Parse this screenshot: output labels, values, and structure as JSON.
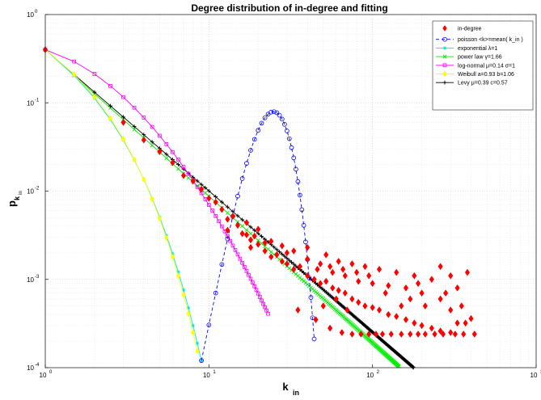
{
  "chart_data": {
    "type": "scatter",
    "title": "Degree distribution of in-degree and fitting",
    "xlabel": "k",
    "xlabel_sub": "in",
    "ylabel": "p",
    "ylabel_sub": "k",
    "ylabel_subsub": "in",
    "x_scale": "log",
    "y_scale": "log",
    "xlim": [
      1,
      1000
    ],
    "ylim": [
      0.0001,
      1
    ],
    "x_ticks": [
      {
        "base": "10",
        "exp": "0",
        "v": 1
      },
      {
        "base": "10",
        "exp": "1",
        "v": 10
      },
      {
        "base": "10",
        "exp": "2",
        "v": 100
      },
      {
        "base": "10",
        "exp": "3",
        "v": 1000
      }
    ],
    "y_ticks": [
      {
        "base": "10",
        "exp": "-4",
        "v": 0.0001
      },
      {
        "base": "10",
        "exp": "-3",
        "v": 0.001
      },
      {
        "base": "10",
        "exp": "-2",
        "v": 0.01
      },
      {
        "base": "10",
        "exp": "-1",
        "v": 0.1
      },
      {
        "base": "10",
        "exp": "0",
        "v": 1
      }
    ],
    "grid": true,
    "legend_position": "top-right",
    "series": [
      {
        "name": "in-degree",
        "color": "#ff0000",
        "marker": "diamond",
        "line": "none",
        "points": [
          [
            1,
            0.4
          ],
          [
            3,
            0.06
          ],
          [
            4,
            0.038
          ],
          [
            5,
            0.028
          ],
          [
            6,
            0.021
          ],
          [
            7,
            0.015
          ],
          [
            8,
            0.013
          ],
          [
            9,
            0.0105
          ],
          [
            10,
            0.0083
          ],
          [
            11,
            0.0075
          ],
          [
            12,
            0.0062
          ],
          [
            13,
            0.0048
          ],
          [
            14,
            0.0052
          ],
          [
            15,
            0.0041
          ],
          [
            16,
            0.0033
          ],
          [
            17,
            0.0032
          ],
          [
            18,
            0.0028
          ],
          [
            19,
            0.0031
          ],
          [
            20,
            0.0025
          ],
          [
            22,
            0.0021
          ],
          [
            24,
            0.0018
          ],
          [
            26,
            0.0019
          ],
          [
            28,
            0.0016
          ],
          [
            30,
            0.0015
          ],
          [
            33,
            0.0013
          ],
          [
            36,
            0.0014
          ],
          [
            40,
            0.0011
          ],
          [
            44,
            0.001
          ],
          [
            48,
            0.0009
          ],
          [
            52,
            0.00095
          ],
          [
            57,
            0.0008
          ],
          [
            62,
            0.00075
          ],
          [
            68,
            0.0007
          ],
          [
            75,
            0.0006
          ],
          [
            82,
            0.00055
          ],
          [
            90,
            0.0005
          ],
          [
            100,
            0.00048
          ],
          [
            110,
            0.00045
          ],
          [
            125,
            0.0004
          ],
          [
            140,
            0.00038
          ],
          [
            160,
            0.00035
          ],
          [
            180,
            0.00032
          ],
          [
            200,
            0.0003
          ],
          [
            230,
            0.00028
          ],
          [
            260,
            0.00026
          ],
          [
            300,
            0.00025
          ],
          [
            17,
            0.0044
          ],
          [
            20,
            0.0037
          ],
          [
            24,
            0.0027
          ],
          [
            28,
            0.0024
          ],
          [
            33,
            0.0021
          ],
          [
            40,
            0.0017
          ],
          [
            48,
            0.0015
          ],
          [
            57,
            0.0012
          ],
          [
            68,
            0.0011
          ],
          [
            82,
            0.00095
          ],
          [
            100,
            0.0009
          ],
          [
            125,
            0.00085
          ],
          [
            160,
            0.0008
          ],
          [
            200,
            0.0007
          ],
          [
            260,
            0.0006
          ],
          [
            22,
            0.0026
          ],
          [
            30,
            0.002
          ],
          [
            40,
            0.0023
          ],
          [
            52,
            0.0019
          ],
          [
            62,
            0.0016
          ],
          [
            75,
            0.0015
          ],
          [
            90,
            0.0014
          ],
          [
            110,
            0.0013
          ],
          [
            140,
            0.0012
          ],
          [
            180,
            0.0011
          ],
          [
            230,
            0.001
          ],
          [
            35,
            0.00045
          ],
          [
            45,
            0.00035
          ],
          [
            55,
            0.00028
          ],
          [
            65,
            0.00025
          ],
          [
            75,
            0.00024
          ],
          [
            85,
            0.00024
          ],
          [
            95,
            0.00024
          ],
          [
            105,
            0.00024
          ],
          [
            115,
            0.00024
          ],
          [
            130,
            0.00024
          ],
          [
            150,
            0.00024
          ],
          [
            170,
            0.00024
          ],
          [
            190,
            0.00024
          ],
          [
            210,
            0.00024
          ],
          [
            240,
            0.00024
          ],
          [
            270,
            0.00024
          ],
          [
            320,
            0.00024
          ],
          [
            360,
            0.00024
          ],
          [
            420,
            0.00024
          ],
          [
            330,
            0.00032
          ],
          [
            370,
            0.00032
          ],
          [
            400,
            0.00036
          ],
          [
            300,
            0.00045
          ],
          [
            350,
            0.0005
          ],
          [
            280,
            0.0007
          ],
          [
            330,
            0.0008
          ],
          [
            380,
            0.0012
          ],
          [
            260,
            0.0014
          ],
          [
            300,
            0.0011
          ],
          [
            13,
            0.0036
          ],
          [
            18,
            0.0023
          ],
          [
            150,
            0.0005
          ],
          [
            170,
            0.0006
          ],
          [
            190,
            0.0009
          ],
          [
            210,
            0.0005
          ],
          [
            120,
            0.0007
          ],
          [
            95,
            0.0011
          ],
          [
            80,
            0.0012
          ],
          [
            66,
            0.0013
          ],
          [
            55,
            0.0014
          ],
          [
            46,
            0.0013
          ],
          [
            60,
            0.0006
          ],
          [
            70,
            0.00045
          ],
          [
            50,
            0.0005
          ]
        ]
      },
      {
        "name": "poisson <k>=mean( k_in )",
        "color": "#0000ff",
        "marker": "circle",
        "line": "dashed",
        "lambda": 25.3,
        "x_range": [
          8,
          44
        ]
      },
      {
        "name": "exponential  λ=1",
        "color": "#00e5ee",
        "marker": "asterisk",
        "line": "solid",
        "x_range": [
          1,
          9
        ]
      },
      {
        "name": "power law  γ=1.66",
        "color": "#00ee00",
        "marker": "x",
        "line": "solid",
        "gamma": 1.66,
        "x_range": [
          1,
          145
        ]
      },
      {
        "name": "log-normal  μ=0.14  σ=1",
        "color": "#ff00ff",
        "marker": "square",
        "line": "solid",
        "x_range": [
          1,
          23
        ]
      },
      {
        "name": "Weibull a=0.93 b=1.06",
        "color": "#ffff00",
        "marker": "diamond",
        "line": "solid",
        "x_range": [
          1,
          9
        ]
      },
      {
        "name": "Levy  μ=0.39 c=0.57",
        "color": "#000000",
        "marker": "plus",
        "line": "solid",
        "x_range": [
          1,
          210
        ]
      }
    ]
  }
}
